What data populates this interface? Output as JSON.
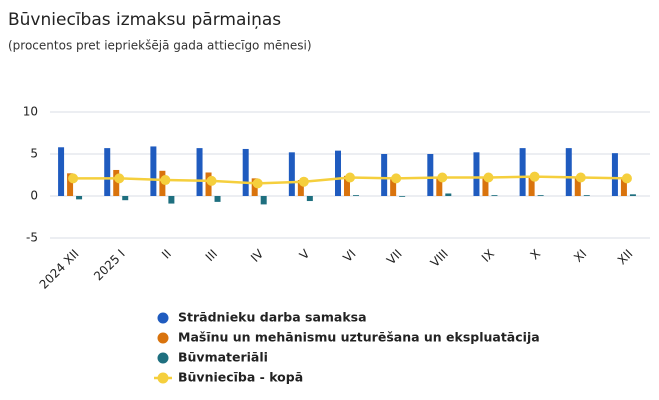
{
  "chart_data": {
    "type": "bar",
    "title": "Būvniecības izmaksu pārmaiņas",
    "subtitle": "(procentos pret iepriekšējā gada attiecīgo mēnesi)",
    "categories": [
      "2024 XII",
      "2025 I",
      "II",
      "III",
      "IV",
      "V",
      "VI",
      "VII",
      "VIII",
      "IX",
      "X",
      "XI",
      "XII"
    ],
    "series": [
      {
        "name": "Strādnieku darba samaksa",
        "type": "bar",
        "color": "#1f5bbf",
        "values": [
          5.8,
          5.7,
          5.9,
          5.7,
          5.6,
          5.2,
          5.4,
          5.0,
          5.0,
          5.2,
          5.7,
          5.7,
          5.1
        ]
      },
      {
        "name": "Mašīnu un mehānismu uzturēšana un ekspluatācija",
        "type": "bar",
        "color": "#d9730d",
        "values": [
          2.7,
          3.1,
          3.0,
          2.8,
          2.1,
          1.9,
          2.4,
          2.0,
          2.2,
          2.2,
          2.3,
          2.1,
          2.0
        ]
      },
      {
        "name": "Būvmateriāli",
        "type": "bar",
        "color": "#1e6f7f",
        "values": [
          -0.4,
          -0.5,
          -0.9,
          -0.7,
          -1.0,
          -0.6,
          0.1,
          0.0,
          0.3,
          0.1,
          0.1,
          0.1,
          0.2
        ]
      },
      {
        "name": "Būvniecība - kopā",
        "type": "line",
        "color": "#f5cf3d",
        "values": [
          2.1,
          2.1,
          1.9,
          1.8,
          1.5,
          1.7,
          2.2,
          2.1,
          2.2,
          2.2,
          2.3,
          2.2,
          2.1
        ]
      }
    ],
    "ylim": [
      -5,
      10
    ],
    "yticks": [
      -5,
      0,
      5,
      10
    ],
    "grid": true
  }
}
